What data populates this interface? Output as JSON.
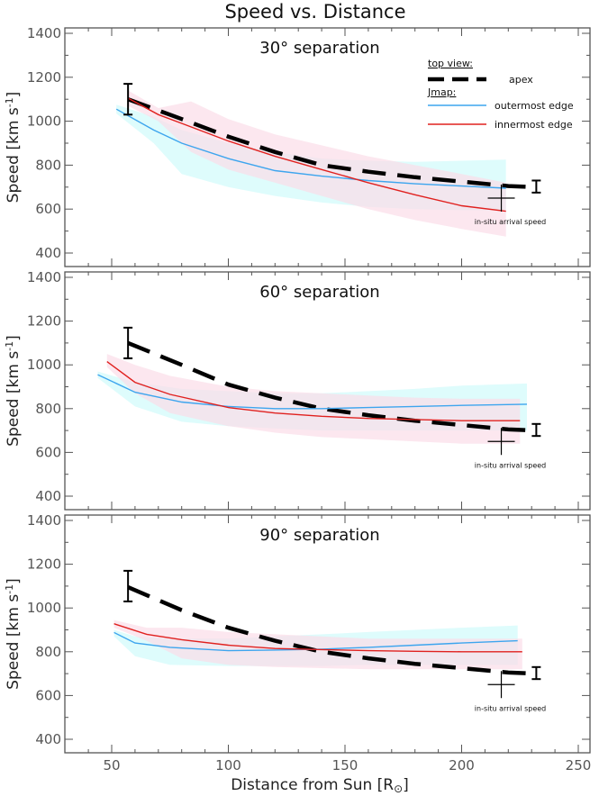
{
  "figure_title": "Speed vs. Distance",
  "colors": {
    "apex": "#000000",
    "outer": "#3da5ee",
    "inner": "#e0211f",
    "outer_band": "#d8fbfb",
    "inner_band": "#fbdde8",
    "frame": "#555555"
  },
  "legend": {
    "top_view_label": "top view:",
    "apex_label": "apex",
    "jmap_label": "Jmap:",
    "outer_label": "outermost edge",
    "inner_label": "innermost edge"
  },
  "chart_data": [
    {
      "type": "line",
      "title": "30° separation",
      "ylabel_main": "Speed",
      "ylabel_unit": "[km s",
      "ylabel_sup": "-1",
      "ylabel_close": "]",
      "xlim": [
        30,
        250
      ],
      "ylim": [
        375,
        1425
      ],
      "yticks": [
        400,
        600,
        800,
        1000,
        1200,
        1400
      ],
      "ytick_labels": [
        "400",
        "600",
        "800",
        "1000",
        "1200",
        "1400"
      ],
      "series": [
        {
          "name": "apex",
          "x": [
            57,
            80,
            100,
            120,
            140,
            160,
            180,
            200,
            220,
            232
          ],
          "y": [
            1100,
            1010,
            930,
            860,
            800,
            770,
            745,
            725,
            705,
            700
          ]
        },
        {
          "name": "outermost edge",
          "x": [
            52,
            68,
            80,
            100,
            120,
            140,
            160,
            180,
            200,
            219
          ],
          "y": [
            1055,
            960,
            900,
            830,
            775,
            750,
            730,
            715,
            705,
            695
          ]
        },
        {
          "name": "innermost edge",
          "x": [
            57,
            70,
            80,
            100,
            120,
            140,
            160,
            180,
            200,
            219
          ],
          "y": [
            1105,
            1030,
            990,
            910,
            840,
            780,
            720,
            665,
            615,
            590
          ]
        }
      ],
      "bands": [
        {
          "name": "outermost edge range",
          "x": [
            52,
            68,
            80,
            100,
            120,
            140,
            160,
            180,
            200,
            219
          ],
          "upper": [
            1075,
            1020,
            960,
            900,
            860,
            830,
            820,
            815,
            820,
            825
          ],
          "lower": [
            1035,
            900,
            760,
            700,
            660,
            630,
            610,
            600,
            595,
            595
          ]
        },
        {
          "name": "innermost edge range",
          "x": [
            57,
            70,
            84,
            100,
            120,
            140,
            160,
            180,
            200,
            219
          ],
          "upper": [
            1140,
            1060,
            1090,
            1010,
            940,
            890,
            840,
            800,
            760,
            720
          ],
          "lower": [
            1070,
            1000,
            860,
            780,
            720,
            660,
            600,
            550,
            510,
            475
          ]
        }
      ],
      "apex_errbar": {
        "x": 57,
        "low": 1030,
        "high": 1170
      },
      "end_errbar": {
        "x": 232,
        "low": 675,
        "high": 730
      },
      "insitu": {
        "x": 217,
        "y": 650,
        "label": "in-situ arrival speed"
      }
    },
    {
      "type": "line",
      "title": "60° separation",
      "ylabel_main": "Speed",
      "ylabel_unit": "[km s",
      "ylabel_sup": "-1",
      "ylabel_close": "]",
      "xlim": [
        30,
        250
      ],
      "ylim": [
        375,
        1425
      ],
      "yticks": [
        400,
        600,
        800,
        1000,
        1200,
        1400
      ],
      "ytick_labels": [
        "400",
        "600",
        "800",
        "1000",
        "1200",
        "1400"
      ],
      "series": [
        {
          "name": "apex",
          "x": [
            57,
            80,
            100,
            120,
            140,
            160,
            180,
            200,
            220,
            232
          ],
          "y": [
            1100,
            1000,
            910,
            850,
            800,
            770,
            745,
            725,
            705,
            700
          ]
        },
        {
          "name": "outermost edge",
          "x": [
            44,
            60,
            80,
            100,
            120,
            140,
            160,
            180,
            200,
            228
          ],
          "y": [
            955,
            875,
            830,
            810,
            800,
            800,
            805,
            810,
            815,
            820
          ]
        },
        {
          "name": "innermost edge",
          "x": [
            48,
            60,
            75,
            100,
            120,
            140,
            160,
            180,
            200,
            225
          ],
          "y": [
            1015,
            920,
            865,
            805,
            780,
            765,
            755,
            750,
            745,
            745
          ]
        }
      ],
      "bands": [
        {
          "name": "outermost edge range",
          "x": [
            44,
            60,
            80,
            100,
            120,
            140,
            160,
            180,
            200,
            228
          ],
          "upper": [
            970,
            920,
            890,
            880,
            870,
            870,
            880,
            890,
            905,
            915
          ],
          "lower": [
            940,
            810,
            740,
            720,
            710,
            700,
            700,
            700,
            700,
            700
          ]
        },
        {
          "name": "innermost edge range",
          "x": [
            48,
            60,
            75,
            100,
            120,
            140,
            160,
            180,
            200,
            225
          ],
          "upper": [
            1050,
            1000,
            950,
            900,
            880,
            870,
            860,
            850,
            845,
            845
          ],
          "lower": [
            990,
            870,
            780,
            720,
            690,
            670,
            660,
            650,
            640,
            640
          ]
        }
      ],
      "apex_errbar": {
        "x": 57,
        "low": 1030,
        "high": 1170
      },
      "end_errbar": {
        "x": 232,
        "low": 675,
        "high": 730
      },
      "insitu": {
        "x": 217,
        "y": 650,
        "label": "in-situ arrival speed"
      }
    },
    {
      "type": "line",
      "title": "90° separation",
      "ylabel_main": "Speed",
      "ylabel_unit": "[km s",
      "ylabel_sup": "-1",
      "ylabel_close": "]",
      "xlim": [
        30,
        250
      ],
      "ylim": [
        375,
        1425
      ],
      "yticks": [
        400,
        600,
        800,
        1000,
        1200,
        1400
      ],
      "ytick_labels": [
        "400",
        "600",
        "800",
        "1000",
        "1200",
        "1400"
      ],
      "xticks": [
        50,
        100,
        150,
        200,
        250
      ],
      "xtick_labels": [
        "50",
        "100",
        "150",
        "200",
        "250"
      ],
      "xlabel": "Distance from Sun [R",
      "xlabel_suffix": "]",
      "series": [
        {
          "name": "apex",
          "x": [
            57,
            80,
            100,
            120,
            140,
            160,
            180,
            200,
            220,
            232
          ],
          "y": [
            1095,
            990,
            910,
            850,
            800,
            770,
            745,
            725,
            705,
            700
          ]
        },
        {
          "name": "outermost edge",
          "x": [
            51,
            60,
            75,
            100,
            120,
            140,
            160,
            180,
            200,
            224
          ],
          "y": [
            888,
            840,
            820,
            805,
            808,
            812,
            820,
            830,
            840,
            850
          ]
        },
        {
          "name": "innermost edge",
          "x": [
            51,
            65,
            80,
            100,
            120,
            140,
            160,
            180,
            200,
            226
          ],
          "y": [
            928,
            880,
            855,
            830,
            815,
            810,
            805,
            802,
            800,
            800
          ]
        }
      ],
      "bands": [
        {
          "name": "outermost edge range",
          "x": [
            51,
            60,
            75,
            100,
            120,
            140,
            160,
            180,
            200,
            224
          ],
          "upper": [
            900,
            870,
            860,
            860,
            870,
            880,
            890,
            900,
            910,
            920
          ],
          "lower": [
            870,
            780,
            740,
            735,
            735,
            735,
            740,
            740,
            740,
            740
          ]
        },
        {
          "name": "innermost edge range",
          "x": [
            51,
            65,
            80,
            100,
            120,
            140,
            160,
            180,
            200,
            226
          ],
          "upper": [
            945,
            910,
            910,
            890,
            880,
            870,
            860,
            860,
            860,
            860
          ],
          "lower": [
            910,
            850,
            770,
            740,
            730,
            725,
            720,
            720,
            720,
            720
          ]
        }
      ],
      "apex_errbar": {
        "x": 57,
        "low": 1030,
        "high": 1170
      },
      "end_errbar": {
        "x": 232,
        "low": 675,
        "high": 730
      },
      "insitu": {
        "x": 217,
        "y": 650,
        "label": "in-situ arrival speed"
      }
    }
  ]
}
